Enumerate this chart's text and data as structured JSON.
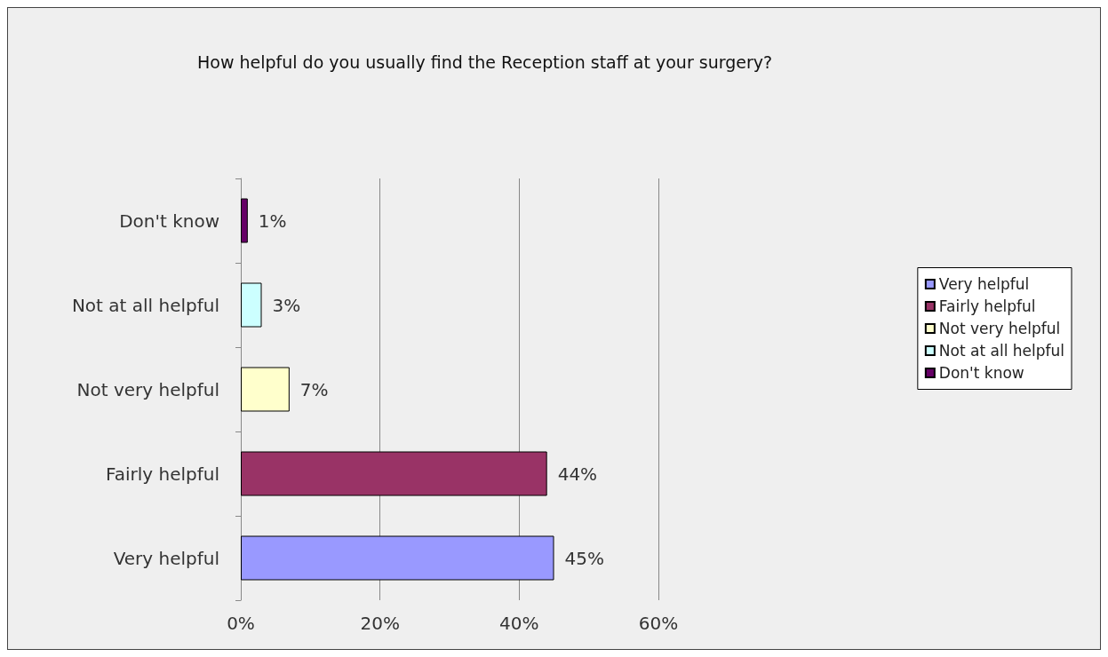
{
  "chart_data": {
    "type": "bar",
    "orientation": "horizontal",
    "title": "How helpful do you usually find the Reception staff at your surgery?",
    "categories": [
      "Don't know",
      "Not at all helpful",
      "Not very helpful",
      "Fairly helpful",
      "Very helpful"
    ],
    "series": [
      {
        "name": "Very helpful",
        "color": "#9999ff",
        "values": [
          null,
          null,
          null,
          null,
          45
        ],
        "value_labels": [
          null,
          null,
          null,
          null,
          "45%"
        ]
      },
      {
        "name": "Fairly helpful",
        "color": "#993366",
        "values": [
          null,
          null,
          null,
          44,
          null
        ],
        "value_labels": [
          null,
          null,
          null,
          "44%",
          null
        ]
      },
      {
        "name": "Not very helpful",
        "color": "#ffffcc",
        "values": [
          null,
          null,
          7,
          null,
          null
        ],
        "value_labels": [
          null,
          null,
          "7%",
          null,
          null
        ]
      },
      {
        "name": "Not at all helpful",
        "color": "#ccffff",
        "values": [
          null,
          3,
          null,
          null,
          null
        ],
        "value_labels": [
          null,
          "3%",
          null,
          null,
          null
        ]
      },
      {
        "name": "Don't know",
        "color": "#660066",
        "values": [
          1,
          null,
          null,
          null,
          null
        ],
        "value_labels": [
          "1%",
          null,
          null,
          null,
          null
        ]
      }
    ],
    "xlim": [
      0,
      60
    ],
    "xticks": [
      {
        "value": 0,
        "label": "0%"
      },
      {
        "value": 20,
        "label": "20%"
      },
      {
        "value": 40,
        "label": "40%"
      },
      {
        "value": 60,
        "label": "60%"
      }
    ],
    "grid": "x",
    "legend": "right"
  }
}
